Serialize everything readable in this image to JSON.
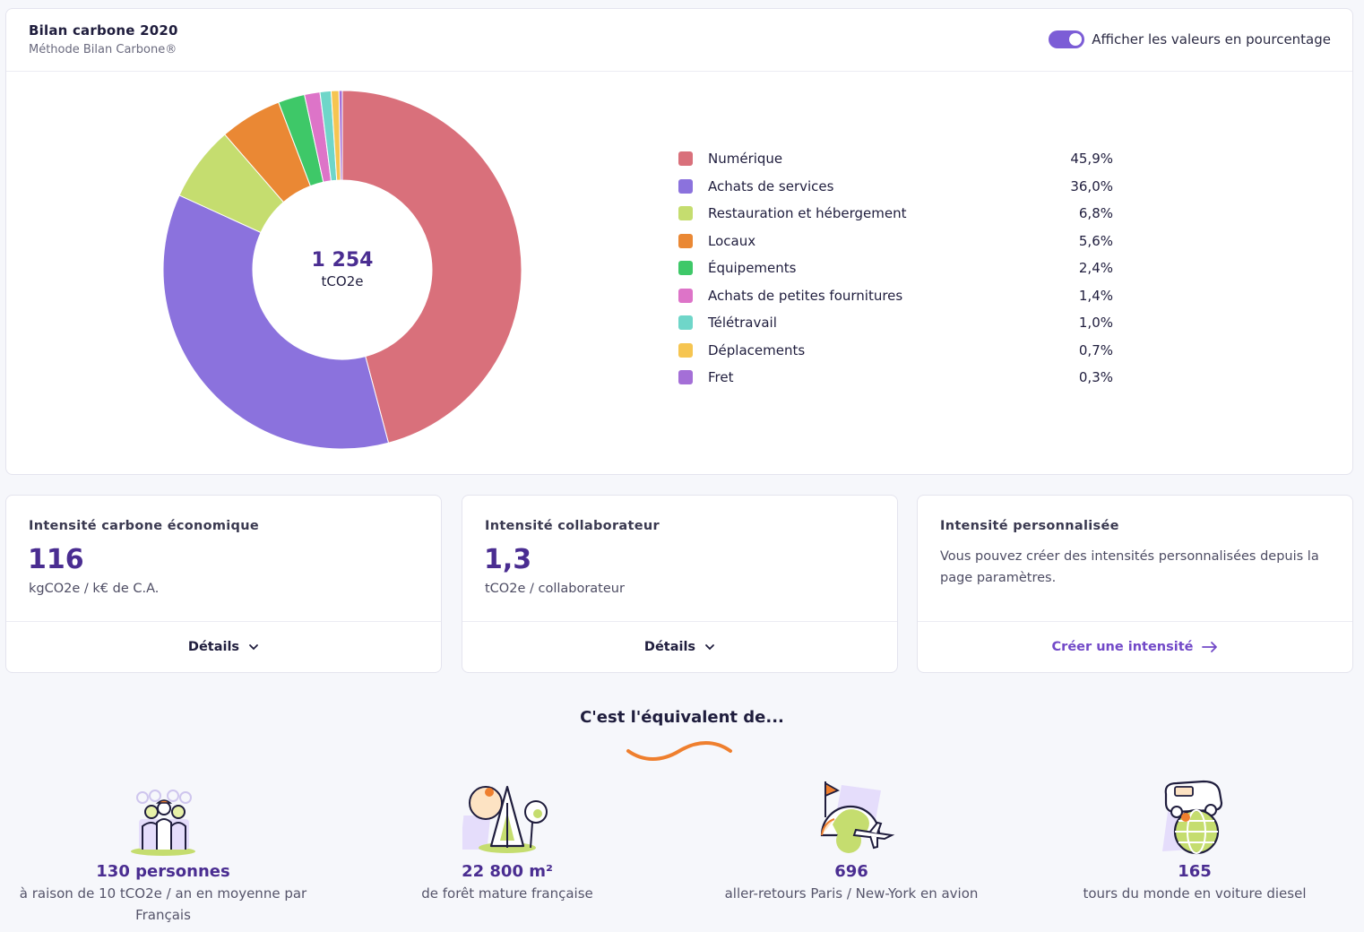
{
  "header": {
    "title": "Bilan carbone 2020",
    "subtitle": "Méthode Bilan Carbone®",
    "toggle_label": "Afficher les valeurs en pourcentage",
    "toggle_on": true
  },
  "chart_data": {
    "type": "pie",
    "title": "Bilan carbone 2020",
    "center_value": "1 254",
    "center_unit": "tCO2e",
    "categories": [
      "Numérique",
      "Achats de services",
      "Restauration et hébergement",
      "Locaux",
      "Équipements",
      "Achats de petites fournitures",
      "Télétravail",
      "Déplacements",
      "Fret"
    ],
    "values": [
      45.9,
      36.0,
      6.8,
      5.6,
      2.4,
      1.4,
      1.0,
      0.7,
      0.3
    ],
    "labels": [
      "45,9%",
      "36,0%",
      "6,8%",
      "5,6%",
      "2,4%",
      "1,4%",
      "1,0%",
      "0,7%",
      "0,3%"
    ],
    "colors": [
      "#d9707b",
      "#8b72dd",
      "#c5dd6f",
      "#ea8834",
      "#3ec868",
      "#dd74c8",
      "#6fd6c9",
      "#f6c551",
      "#a46fd7"
    ],
    "legend_position": "right"
  },
  "kpis": [
    {
      "title": "Intensité carbone économique",
      "value": "116",
      "unit": "kgCO2e / k€ de C.A.",
      "action": "Détails"
    },
    {
      "title": "Intensité collaborateur",
      "value": "1,3",
      "unit": "tCO2e / collaborateur",
      "action": "Détails"
    },
    {
      "title": "Intensité personnalisée",
      "text": "Vous pouvez créer des intensités personnalisées depuis la page paramètres.",
      "action": "Créer une intensité"
    }
  ],
  "equivalents": {
    "title": "C'est l'équivalent de...",
    "items": [
      {
        "value": "130 personnes",
        "desc": "à raison de 10 tCO2e / an en moyenne par Français",
        "icon": "people-icon"
      },
      {
        "value": "22 800 m²",
        "desc": "de forêt mature française",
        "icon": "forest-icon"
      },
      {
        "value": "696",
        "desc": "aller-retours Paris / New-York en avion",
        "icon": "plane-globe-icon"
      },
      {
        "value": "165",
        "desc": "tours du monde en voiture diesel",
        "icon": "car-globe-icon"
      }
    ]
  }
}
